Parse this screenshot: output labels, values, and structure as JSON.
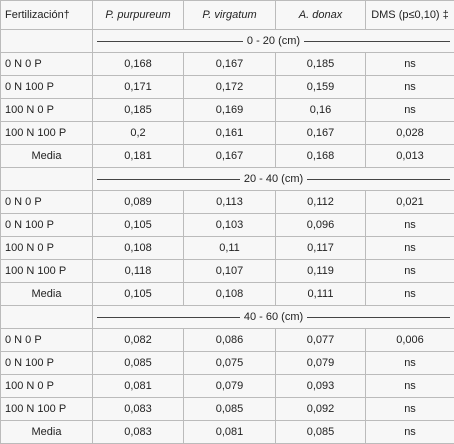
{
  "table": {
    "header": [
      "Fertilización†",
      "P. purpureum",
      "P. virgatum",
      "A. donax",
      "DMS (p≤0,10) ‡"
    ],
    "sections": [
      {
        "depth": "0 - 20 (cm)",
        "rows": [
          [
            "0 N 0 P",
            "0,168",
            "0,167",
            "0,185",
            "ns"
          ],
          [
            "0 N 100 P",
            "0,171",
            "0,172",
            "0,159",
            "ns"
          ],
          [
            "100 N 0 P",
            "0,185",
            "0,169",
            "0,16",
            "ns"
          ],
          [
            "100 N 100 P",
            "0,2",
            "0,161",
            "0,167",
            "0,028"
          ],
          [
            "Media",
            "0,181",
            "0,167",
            "0,168",
            "0,013"
          ]
        ]
      },
      {
        "depth": "20 - 40 (cm)",
        "rows": [
          [
            "0 N 0 P",
            "0,089",
            "0,113",
            "0,112",
            "0,021"
          ],
          [
            "0 N 100 P",
            "0,105",
            "0,103",
            "0,096",
            "ns"
          ],
          [
            "100 N 0 P",
            "0,108",
            "0,11",
            "0,117",
            "ns"
          ],
          [
            "100 N 100 P",
            "0,118",
            "0,107",
            "0,119",
            "ns"
          ],
          [
            "Media",
            "0,105",
            "0,108",
            "0,111",
            "ns"
          ]
        ]
      },
      {
        "depth": "40 - 60 (cm)",
        "rows": [
          [
            "0 N 0 P",
            "0,082",
            "0,086",
            "0,077",
            "0,006"
          ],
          [
            "0 N 100 P",
            "0,085",
            "0,075",
            "0,079",
            "ns"
          ],
          [
            "100 N 0 P",
            "0,081",
            "0,079",
            "0,093",
            "ns"
          ],
          [
            "100 N 100 P",
            "0,083",
            "0,085",
            "0,092",
            "ns"
          ],
          [
            "Media",
            "0,083",
            "0,081",
            "0,085",
            "ns"
          ]
        ]
      }
    ]
  }
}
